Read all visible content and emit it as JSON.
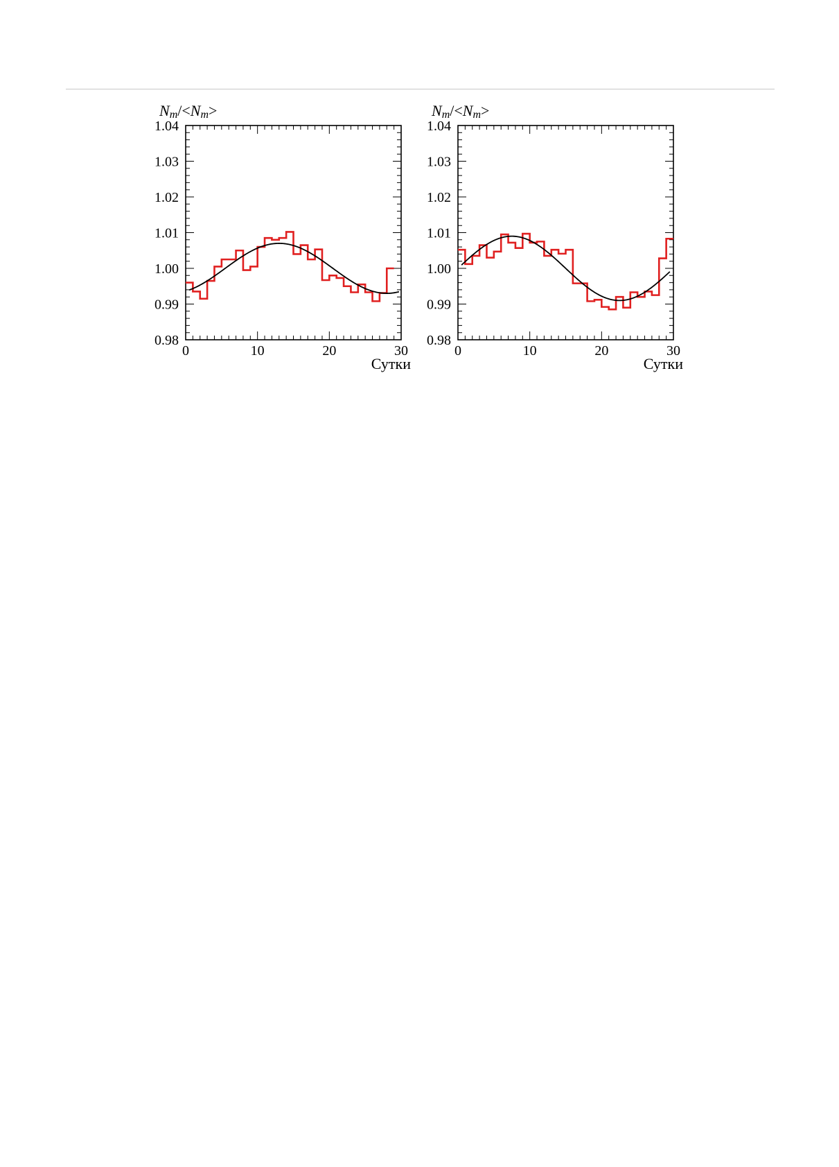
{
  "chart_data": [
    {
      "type": "step-histogram-with-fit",
      "ylabel": {
        "main": "N",
        "sub": "m",
        "sep": "/<",
        "main2": "N",
        "sub2": "m",
        "end": ">"
      },
      "xlabel": "Сутки",
      "xlim": [
        0,
        30
      ],
      "ylim": [
        0.98,
        1.04
      ],
      "x_ticks": [
        0,
        10,
        20,
        30
      ],
      "y_ticks": [
        "0.98",
        "0.99",
        "1.00",
        "1.01",
        "1.02",
        "1.03",
        "1.04"
      ],
      "histogram": {
        "color": "#e02020",
        "bin_width": 1,
        "values": [
          0.996,
          0.9935,
          0.9915,
          0.9965,
          1.0005,
          1.0025,
          1.0025,
          1.005,
          0.9995,
          1.0005,
          1.006,
          1.0085,
          1.008,
          1.0085,
          1.0102,
          1.004,
          1.0065,
          1.0025,
          1.0053,
          0.9967,
          0.998,
          0.9973,
          0.995,
          0.9933,
          0.9955,
          0.9933,
          0.9908,
          0.9931,
          1.0
        ]
      },
      "fit": {
        "color": "#000000",
        "form": "sine",
        "mean": 1.0,
        "amplitude": 0.007,
        "peak_day": 13.0,
        "period": 30,
        "x_start": 0.5,
        "x_end": 29.7
      }
    },
    {
      "type": "step-histogram-with-fit",
      "ylabel": {
        "main": "N",
        "sub": "m",
        "sep": "/<",
        "main2": "N",
        "sub2": "m",
        "end": ">"
      },
      "xlabel": "Сутки",
      "xlim": [
        0,
        30
      ],
      "ylim": [
        0.98,
        1.04
      ],
      "x_ticks": [
        0,
        10,
        20,
        30
      ],
      "y_ticks": [
        "0.98",
        "0.99",
        "1.00",
        "1.01",
        "1.02",
        "1.03",
        "1.04"
      ],
      "histogram": {
        "color": "#e02020",
        "bin_width": 1,
        "values": [
          1.0052,
          1.0012,
          1.0035,
          1.0065,
          1.003,
          1.0047,
          1.0095,
          1.0072,
          1.0057,
          1.0097,
          1.0072,
          1.0075,
          1.0035,
          1.0052,
          1.0041,
          1.0052,
          0.9958,
          0.9958,
          0.9908,
          0.9912,
          0.9892,
          0.9885,
          0.992,
          0.989,
          0.9933,
          0.992,
          0.9935,
          0.9925,
          1.0028,
          1.0083
        ]
      },
      "fit": {
        "color": "#000000",
        "form": "sine",
        "mean": 1.0,
        "amplitude": 0.009,
        "peak_day": 7.5,
        "period": 30,
        "x_start": 0.5,
        "x_end": 29.5
      }
    }
  ]
}
